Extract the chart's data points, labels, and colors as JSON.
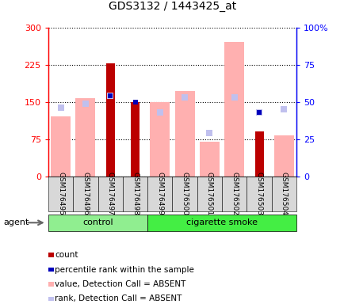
{
  "title": "GDS3132 / 1443425_at",
  "samples": [
    "GSM176495",
    "GSM176496",
    "GSM176497",
    "GSM176498",
    "GSM176499",
    "GSM176500",
    "GSM176501",
    "GSM176502",
    "GSM176503",
    "GSM176504"
  ],
  "n_control": 4,
  "n_smoke": 6,
  "count_values": [
    null,
    null,
    228,
    150,
    null,
    null,
    null,
    null,
    90,
    null
  ],
  "percentile_rank_values": [
    null,
    null,
    54,
    50,
    null,
    null,
    null,
    null,
    43,
    null
  ],
  "absent_value": [
    120,
    158,
    null,
    null,
    150,
    172,
    70,
    270,
    null,
    83
  ],
  "absent_rank": [
    46,
    49,
    54,
    null,
    43,
    53,
    29,
    53,
    43,
    45
  ],
  "ylim_left": [
    0,
    300
  ],
  "ylim_right": [
    0,
    100
  ],
  "yticks_left": [
    0,
    75,
    150,
    225,
    300
  ],
  "yticks_right": [
    0,
    25,
    50,
    75,
    100
  ],
  "ytick_labels_left": [
    "0",
    "75",
    "150",
    "225",
    "300"
  ],
  "ytick_labels_right": [
    "0",
    "25",
    "50",
    "75",
    "100%"
  ],
  "color_count": "#bb0000",
  "color_percentile": "#0000bb",
  "color_absent_value": "#ffb0b0",
  "color_absent_rank": "#c0c0ee",
  "group_control_color": "#90ee90",
  "group_smoke_color": "#44ee44",
  "legend_items": [
    {
      "color": "#bb0000",
      "label": "count"
    },
    {
      "color": "#0000bb",
      "label": "percentile rank within the sample"
    },
    {
      "color": "#ffb0b0",
      "label": "value, Detection Call = ABSENT"
    },
    {
      "color": "#c0c0ee",
      "label": "rank, Detection Call = ABSENT"
    }
  ],
  "agent_label": "agent",
  "control_label": "control",
  "smoke_label": "cigarette smoke",
  "bar_width": 0.5,
  "marker_size": 6
}
